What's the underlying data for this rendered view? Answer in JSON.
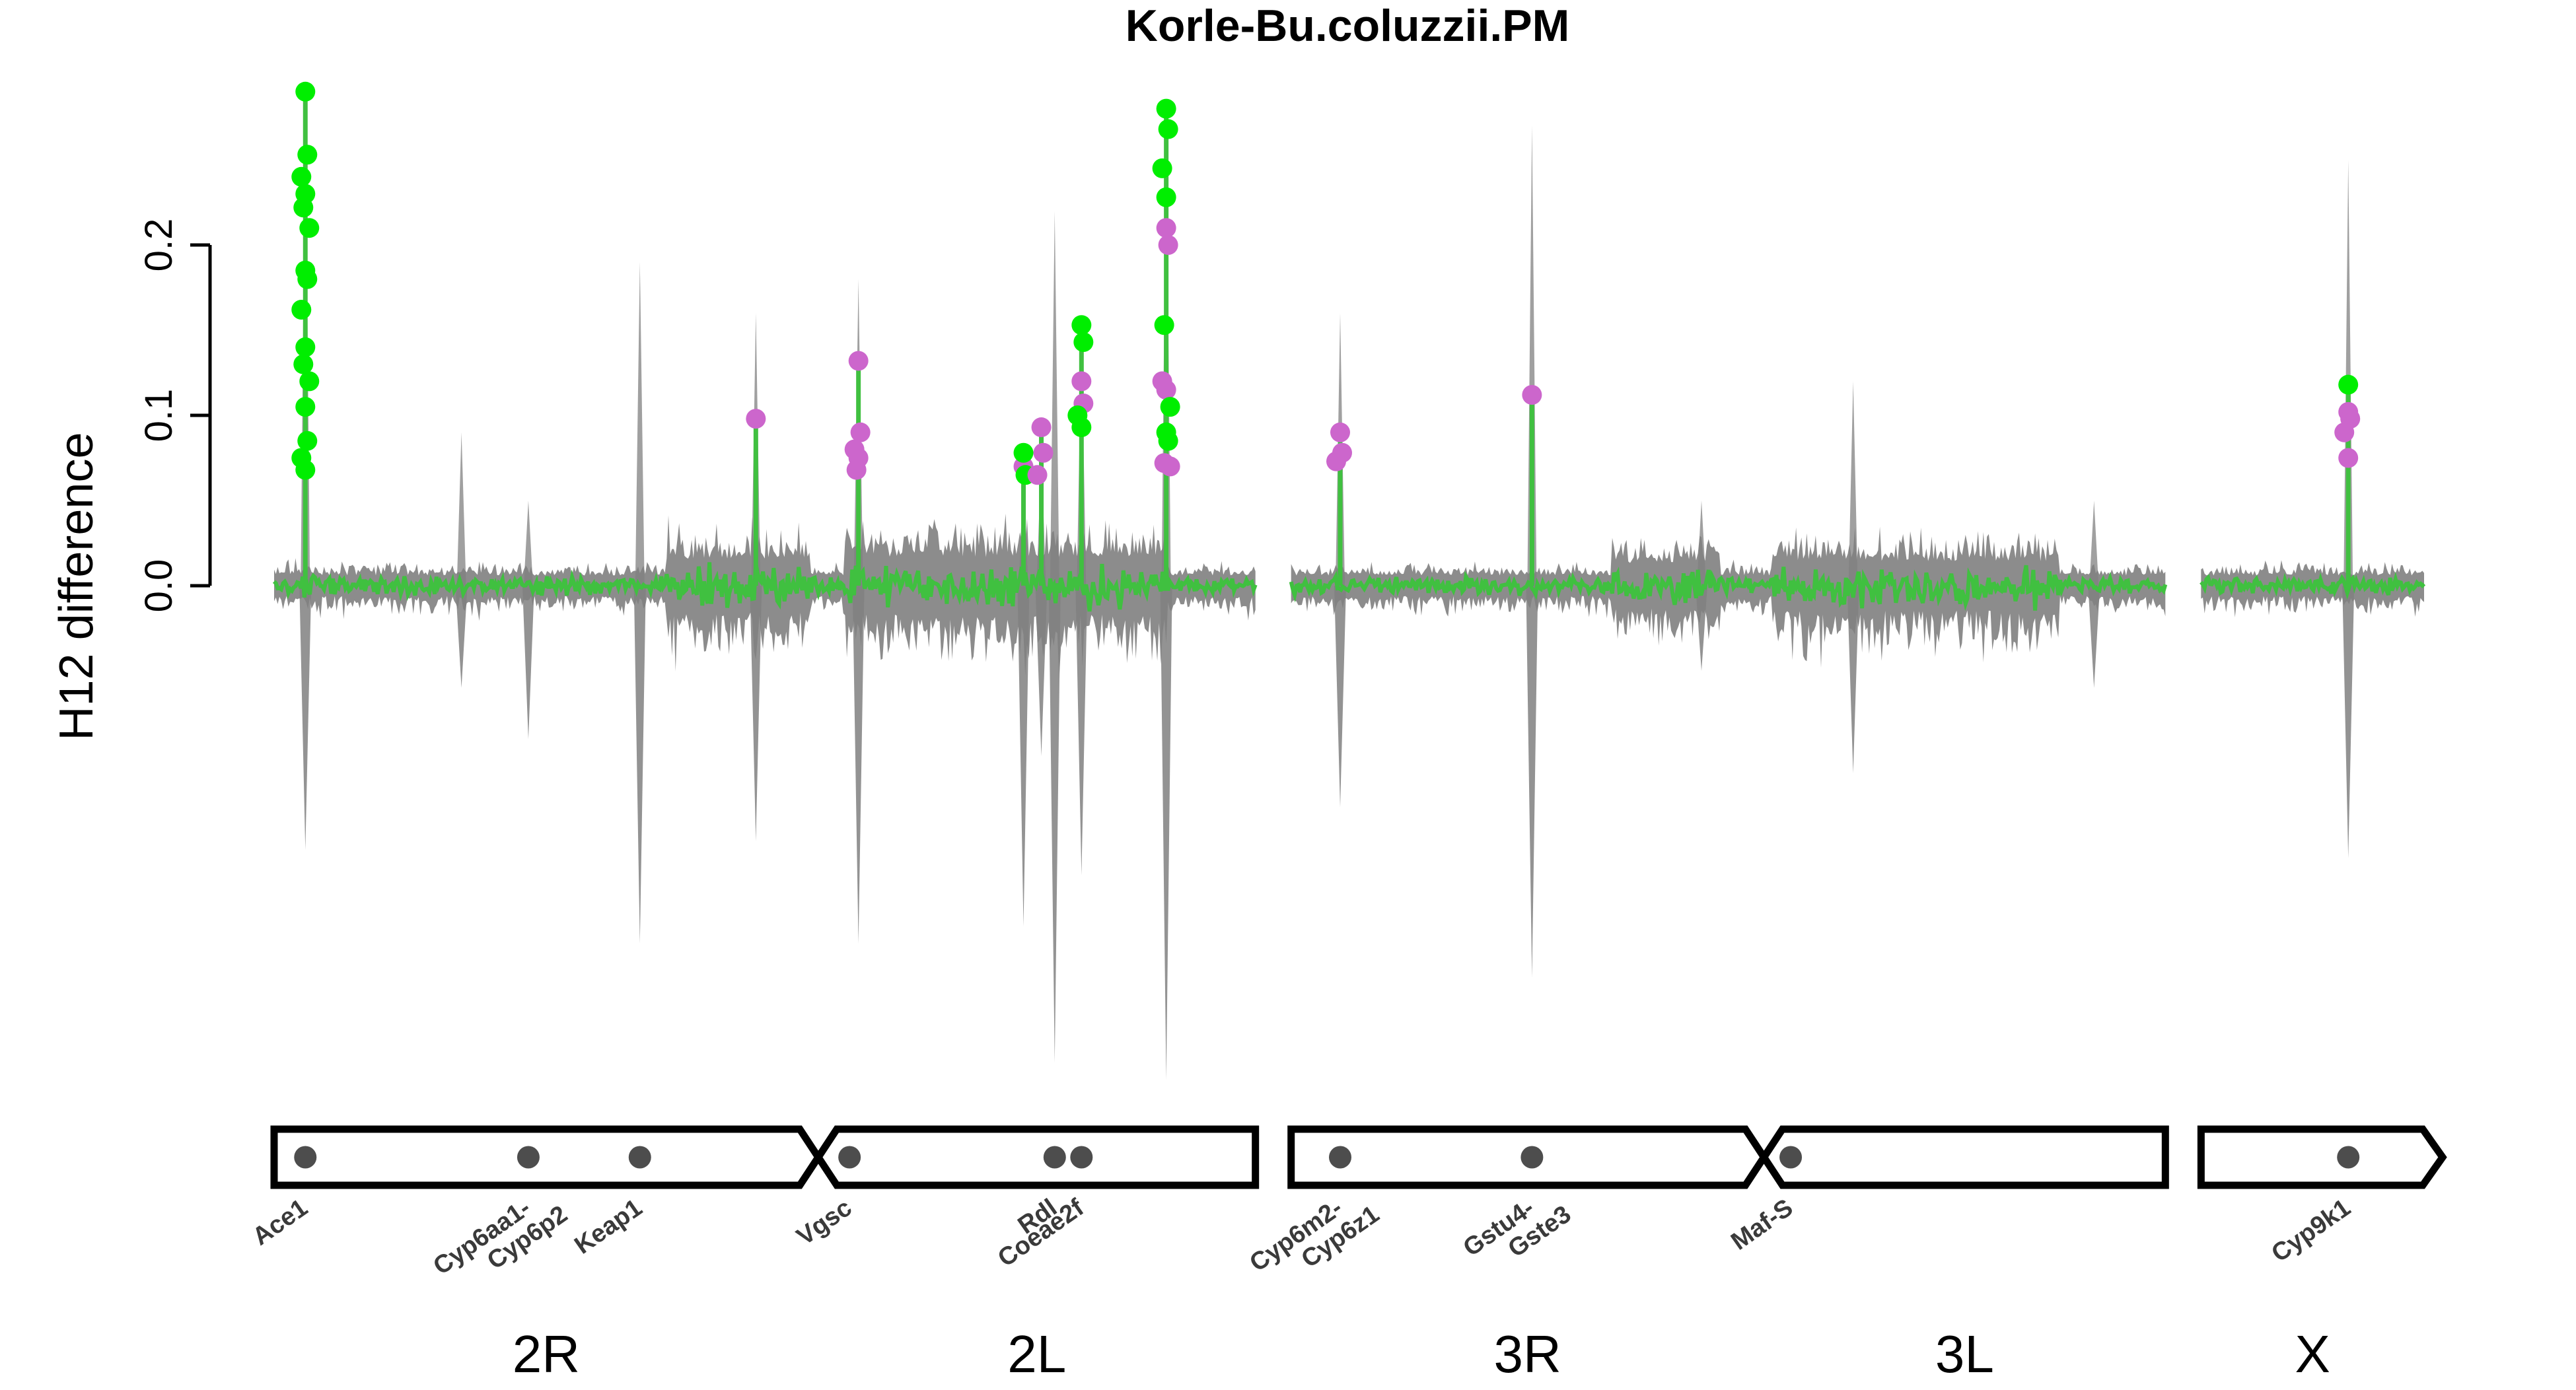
{
  "chart_data": {
    "type": "line",
    "title": "Korle-Bu.coluzzii.PM",
    "xlabel": "",
    "ylabel": "H12 difference",
    "ylim": [
      -0.29,
      0.3
    ],
    "yticks": [
      0.0,
      0.1,
      0.2
    ],
    "ytick_labels": [
      "0.0",
      "0.1",
      "0.2"
    ],
    "grid": false,
    "legend": "none",
    "colors": {
      "line": "#40c040",
      "background_band": "#808080",
      "peak_point_green": "#00ee00",
      "peak_point_magenta": "#cc66cc",
      "gene_dot": "#4d4d4d",
      "outline": "#000000"
    },
    "chromosome_arms": [
      {
        "label": "2R",
        "start": 0,
        "end": 61
      },
      {
        "label": "2L",
        "start": 61,
        "end": 110
      },
      {
        "label": "3R",
        "start": 114,
        "end": 167
      },
      {
        "label": "3L",
        "start": 167,
        "end": 212
      },
      {
        "label": "X",
        "start": 216,
        "end": 241
      }
    ],
    "genes": [
      {
        "name": "Ace1",
        "pos": 3.5
      },
      {
        "name": "Cyp6aa1-\nCyp6p2",
        "pos": 28.5
      },
      {
        "name": "Keap1",
        "pos": 41
      },
      {
        "name": "Vgsc",
        "pos": 64.5
      },
      {
        "name": "Rdl",
        "pos": 87.5
      },
      {
        "name": "Coeae2f",
        "pos": 90.5
      },
      {
        "name": "Cyp6m2-\nCyp6z1",
        "pos": 119.5
      },
      {
        "name": "Gstu4-\nGste3",
        "pos": 141
      },
      {
        "name": "Maf-S",
        "pos": 170
      },
      {
        "name": "Cyp9k1",
        "pos": 232.5
      }
    ],
    "peaks": [
      {
        "x": 3.5,
        "upper": 0.29,
        "lower": -0.155,
        "points_green": [
          0.29,
          0.253,
          0.24,
          0.23,
          0.222,
          0.21,
          0.185,
          0.18,
          0.162,
          0.14,
          0.13,
          0.12,
          0.105,
          0.085,
          0.075,
          0.068
        ]
      },
      {
        "x": 21,
        "upper": 0.09,
        "lower": -0.06
      },
      {
        "x": 28.5,
        "upper": 0.05,
        "lower": -0.09
      },
      {
        "x": 41,
        "upper": 0.19,
        "lower": -0.21
      },
      {
        "x": 54,
        "upper": 0.16,
        "lower": -0.15,
        "points_magenta": [
          0.098
        ]
      },
      {
        "x": 65.5,
        "upper": 0.18,
        "lower": -0.21,
        "points_magenta": [
          0.132,
          0.09,
          0.08,
          0.075,
          0.068
        ]
      },
      {
        "x": 84,
        "upper": 0.07,
        "lower": -0.2,
        "points_green": [
          0.078,
          0.065
        ],
        "points_magenta": [
          0.07
        ]
      },
      {
        "x": 86,
        "upper": 0.08,
        "lower": -0.1,
        "points_magenta": [
          0.093,
          0.078,
          0.065
        ]
      },
      {
        "x": 87.5,
        "upper": 0.22,
        "lower": -0.28
      },
      {
        "x": 90.5,
        "upper": 0.15,
        "lower": -0.17,
        "points_green": [
          0.153,
          0.143,
          0.1,
          0.093
        ],
        "points_magenta": [
          0.12,
          0.107
        ]
      },
      {
        "x": 100,
        "upper": 0.28,
        "lower": -0.29,
        "points_green": [
          0.28,
          0.268,
          0.245,
          0.228,
          0.153,
          0.105,
          0.09,
          0.085
        ],
        "points_magenta": [
          0.21,
          0.2,
          0.12,
          0.115,
          0.072,
          0.07
        ]
      },
      {
        "x": 119.5,
        "upper": 0.16,
        "lower": -0.13,
        "points_magenta": [
          0.09,
          0.078,
          0.073
        ]
      },
      {
        "x": 141,
        "upper": 0.27,
        "lower": -0.23,
        "points_magenta": [
          0.112
        ]
      },
      {
        "x": 160,
        "upper": 0.05,
        "lower": -0.05
      },
      {
        "x": 177,
        "upper": 0.12,
        "lower": -0.11
      },
      {
        "x": 204,
        "upper": 0.05,
        "lower": -0.06
      },
      {
        "x": 232.5,
        "upper": 0.25,
        "lower": -0.16,
        "points_green": [
          0.118
        ],
        "points_magenta": [
          0.102,
          0.098,
          0.09,
          0.075
        ]
      }
    ]
  }
}
